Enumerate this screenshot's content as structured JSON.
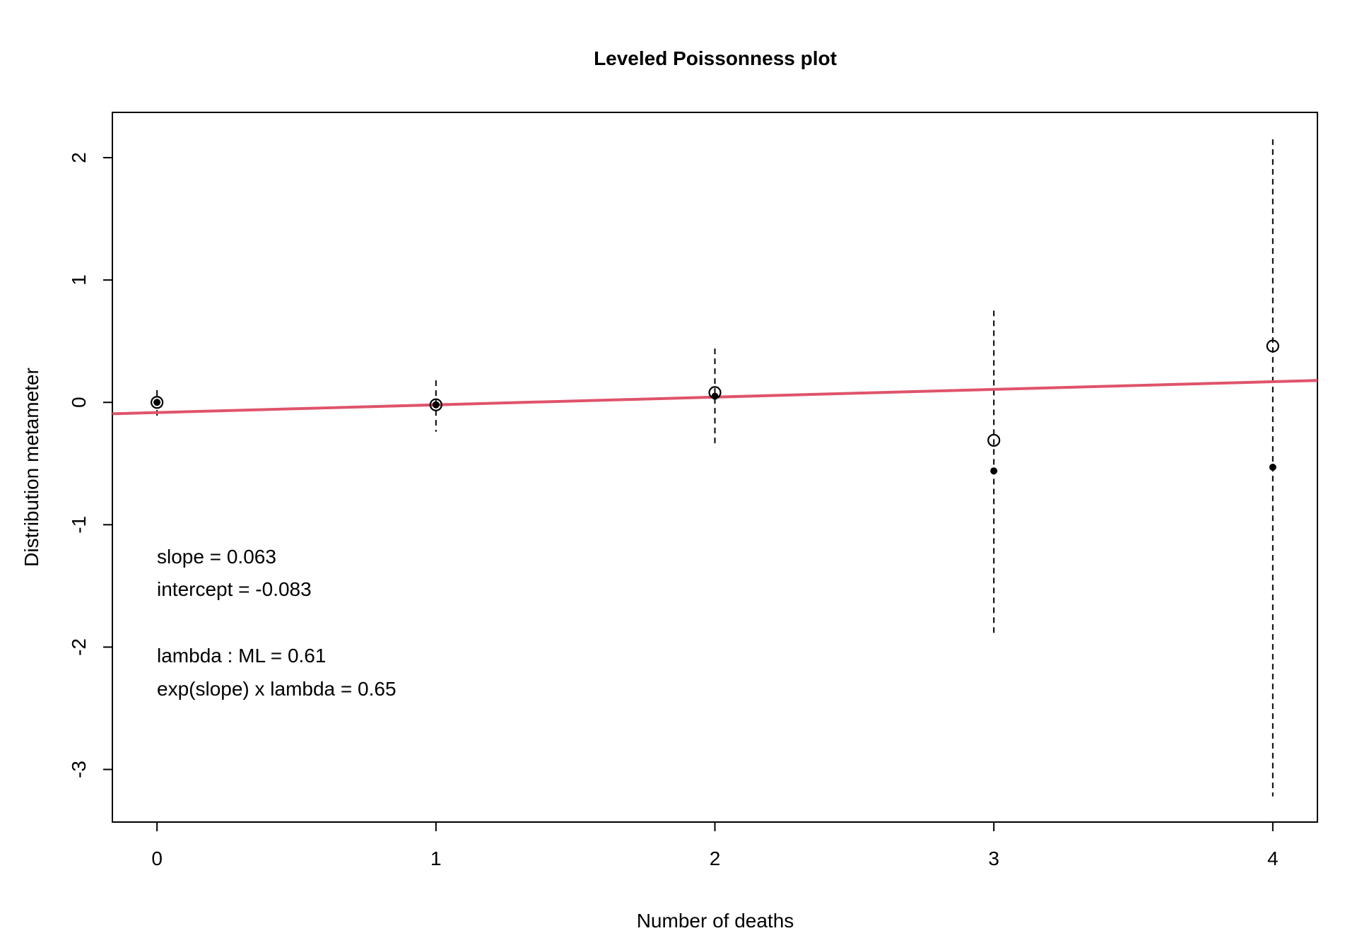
{
  "chart_data": {
    "type": "scatter",
    "title": "Leveled Poissonness plot",
    "xlabel": "Number of deaths",
    "ylabel": "Distribution metameter",
    "xlim": [
      -0.16,
      4.16
    ],
    "ylim": [
      -3.43,
      2.37
    ],
    "x_ticks": [
      "0",
      "1",
      "2",
      "3",
      "4"
    ],
    "y_ticks": [
      "-3",
      "-2",
      "-1",
      "0",
      "1",
      "2"
    ],
    "grid": false,
    "points": [
      {
        "x": 0,
        "observed": 0.0,
        "centered": 0.0,
        "ci_low": -0.14,
        "ci_high": 0.1
      },
      {
        "x": 1,
        "observed": -0.02,
        "centered": -0.02,
        "ci_low": -0.24,
        "ci_high": 0.18
      },
      {
        "x": 2,
        "observed": 0.08,
        "centered": 0.05,
        "ci_low": -0.37,
        "ci_high": 0.44
      },
      {
        "x": 3,
        "observed": -0.31,
        "centered": -0.56,
        "ci_low": -1.89,
        "ci_high": 0.75
      },
      {
        "x": 4,
        "observed": 0.46,
        "centered": -0.53,
        "ci_low": -3.22,
        "ci_high": 2.15
      }
    ],
    "fit_line": {
      "slope": 0.063,
      "intercept": -0.083,
      "color": "#DF536B"
    },
    "annotations": [
      "slope = 0.063",
      "intercept = -0.083",
      "lambda : ML = 0.61",
      "exp(slope) x lambda = 0.65"
    ]
  }
}
